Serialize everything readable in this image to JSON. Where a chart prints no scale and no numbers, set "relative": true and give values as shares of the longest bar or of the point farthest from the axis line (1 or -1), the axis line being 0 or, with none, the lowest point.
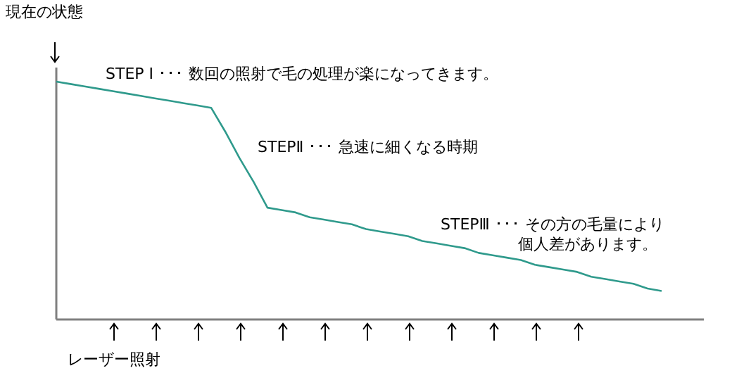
{
  "chart_data": {
    "type": "line",
    "relative": true,
    "categories": [
      null,
      null,
      null,
      null,
      null,
      null,
      null,
      null,
      null,
      null,
      null,
      null,
      null,
      null,
      null,
      null,
      null,
      null,
      null,
      null,
      null,
      null,
      null,
      null,
      null,
      null,
      null,
      null,
      null,
      null,
      null,
      null,
      null,
      null,
      null,
      null,
      null,
      null,
      null,
      null,
      null,
      null,
      null,
      null
    ],
    "series": [
      {
        "color": "#2f9a8c",
        "values": [
          1,
          0.99,
          0.98,
          0.97,
          0.96,
          0.95,
          0.94,
          0.93,
          0.92,
          0.91,
          0.9,
          0.89,
          0.79,
          0.68,
          0.58,
          0.47,
          0.46,
          0.45,
          0.43,
          0.42,
          0.41,
          0.4,
          0.38,
          0.37,
          0.36,
          0.35,
          0.33,
          0.32,
          0.31,
          0.3,
          0.28,
          0.27,
          0.26,
          0.25,
          0.23,
          0.22,
          0.21,
          0.2,
          0.18,
          0.17,
          0.16,
          0.15,
          0.13,
          0.12
        ]
      }
    ],
    "annotations": [
      "現在の状態",
      "STEP Ⅰ ･･･ 数回の照射で毛の処理が楽になってきます。",
      "STEPⅡ ･･･ 急速に細くなる時期",
      "STEPⅢ ･･･ その方の毛量により",
      "個人差があります。",
      "レーザー照射"
    ]
  }
}
